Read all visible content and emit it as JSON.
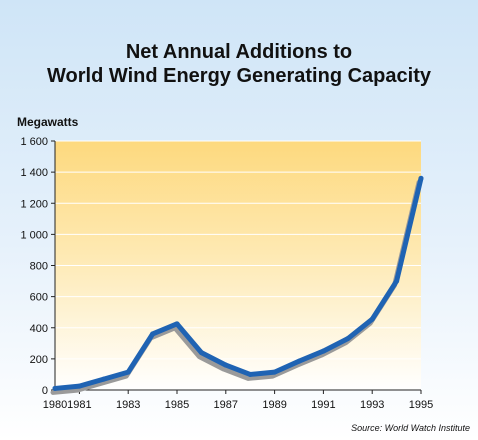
{
  "chart_data": {
    "type": "line",
    "title_lines": [
      "Net Annual Additions to",
      "World Wind Energy Generating Capacity"
    ],
    "ylabel": "Megawatts",
    "xlabel": "",
    "x_tick_labels": [
      "1980",
      "1981",
      "1983",
      "1985",
      "1987",
      "1989",
      "1991",
      "1993",
      "1995"
    ],
    "y_tick_labels": [
      "0",
      "200",
      "400",
      "600",
      "800",
      "1 000",
      "1 200",
      "1 400",
      "1 600"
    ],
    "ylim": [
      0,
      1600
    ],
    "xlim": [
      1980,
      1995
    ],
    "x": [
      1980,
      1981,
      1982,
      1983,
      1984,
      1985,
      1986,
      1987,
      1988,
      1989,
      1990,
      1991,
      1992,
      1993,
      1994,
      1995
    ],
    "values": [
      10,
      25,
      70,
      115,
      360,
      425,
      240,
      160,
      100,
      115,
      185,
      250,
      330,
      455,
      700,
      1360
    ],
    "source": "Source: World Watch Institute",
    "colors": {
      "line": "#1f63b3",
      "shadow": "#9a9a9a",
      "plot_top": "#fdd97e",
      "plot_bottom": "#ffffff"
    }
  }
}
